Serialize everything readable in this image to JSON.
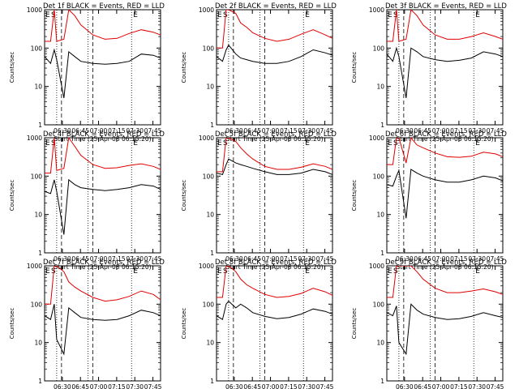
{
  "figure": {
    "background": "#ffffff",
    "axis_color": "#000000",
    "events_color": "#000000",
    "lld_color": "#e00000"
  },
  "chart_data": [
    {
      "type": "line",
      "title": "Det 1f BLACK = Events, RED = LLD",
      "xlabel": "Start Time (25-Apr-08 06:15:20)",
      "ylabel": "Counts/sec",
      "yscale": "log",
      "ylim": [
        1,
        1000
      ],
      "xlim_minutes_after_start": [
        0,
        96
      ],
      "x_tick_labels": [
        "06:30",
        "06:45",
        "07:00",
        "07:15",
        "07:30",
        "07:45"
      ],
      "y_tick_labels": [
        "1",
        "10",
        "100",
        "1000"
      ],
      "annotations": [
        "E",
        "S",
        "E"
      ],
      "series": [
        {
          "name": "LLD",
          "color": "#e00000",
          "x": [
            0,
            5,
            8,
            10,
            16,
            20,
            25,
            30,
            40,
            50,
            60,
            70,
            80,
            90,
            96
          ],
          "y": [
            150,
            150,
            1000,
            150,
            170,
            1000,
            700,
            400,
            220,
            170,
            180,
            240,
            300,
            260,
            220
          ]
        },
        {
          "name": "Events",
          "color": "#000000",
          "x": [
            0,
            5,
            8,
            10,
            16,
            20,
            25,
            30,
            40,
            50,
            60,
            70,
            80,
            90,
            96
          ],
          "y": [
            60,
            40,
            90,
            50,
            5,
            80,
            60,
            45,
            40,
            38,
            40,
            45,
            70,
            65,
            55
          ]
        }
      ]
    },
    {
      "type": "line",
      "title": "Det 2f BLACK = Events, RED = LLD",
      "xlabel": "Start Time (25-Apr-08 06:15:20)",
      "ylabel": "Counts/sec",
      "yscale": "log",
      "ylim": [
        1,
        1000
      ],
      "xlim_minutes_after_start": [
        0,
        96
      ],
      "x_tick_labels": [
        "06:30",
        "06:45",
        "07:00",
        "07:15",
        "07:30",
        "07:45"
      ],
      "y_tick_labels": [
        "1",
        "10",
        "100",
        "1000"
      ],
      "annotations": [
        "E",
        "S",
        "E"
      ],
      "series": [
        {
          "name": "LLD",
          "color": "#e00000",
          "x": [
            0,
            5,
            8,
            10,
            16,
            20,
            25,
            30,
            40,
            50,
            60,
            70,
            80,
            90,
            96
          ],
          "y": [
            100,
            100,
            1000,
            1000,
            800,
            450,
            350,
            250,
            180,
            150,
            170,
            230,
            300,
            220,
            180
          ]
        },
        {
          "name": "Events",
          "color": "#000000",
          "x": [
            0,
            5,
            8,
            10,
            16,
            20,
            25,
            30,
            40,
            50,
            60,
            70,
            80,
            90,
            96
          ],
          "y": [
            60,
            45,
            90,
            120,
            70,
            55,
            50,
            45,
            40,
            40,
            45,
            60,
            90,
            75,
            65
          ]
        }
      ]
    },
    {
      "type": "line",
      "title": "Det 3f BLACK = Events, RED = LLD",
      "xlabel": "Start Time (25-Apr-08 06:15:20)",
      "ylabel": "Counts/sec",
      "yscale": "log",
      "ylim": [
        1,
        1000
      ],
      "xlim_minutes_after_start": [
        0,
        96
      ],
      "x_tick_labels": [
        "06:30",
        "06:45",
        "07:00",
        "07:15",
        "07:30",
        "07:45"
      ],
      "y_tick_labels": [
        "1",
        "10",
        "100",
        "1000"
      ],
      "annotations": [
        "E",
        "S",
        "E"
      ],
      "series": [
        {
          "name": "LLD",
          "color": "#e00000",
          "x": [
            0,
            5,
            8,
            10,
            16,
            20,
            25,
            30,
            40,
            50,
            60,
            70,
            80,
            90,
            96
          ],
          "y": [
            150,
            150,
            1000,
            150,
            170,
            1000,
            700,
            400,
            220,
            170,
            170,
            200,
            250,
            200,
            170
          ]
        },
        {
          "name": "Events",
          "color": "#000000",
          "x": [
            0,
            5,
            8,
            10,
            16,
            20,
            25,
            30,
            40,
            50,
            60,
            70,
            80,
            90,
            96
          ],
          "y": [
            70,
            45,
            100,
            60,
            5,
            100,
            80,
            60,
            50,
            45,
            48,
            55,
            80,
            70,
            60
          ]
        }
      ]
    },
    {
      "type": "line",
      "title": "Det 4f BLACK = Events, RED = LLD",
      "xlabel": "Start Time (25-Apr-08 06:15:20)",
      "ylabel": "Counts/sec",
      "yscale": "log",
      "ylim": [
        1,
        1000
      ],
      "xlim_minutes_after_start": [
        0,
        96
      ],
      "x_tick_labels": [
        "06:30",
        "06:45",
        "07:00",
        "07:15",
        "07:30",
        "07:45"
      ],
      "y_tick_labels": [
        "1",
        "10",
        "100",
        "1000"
      ],
      "annotations": [
        "E",
        "S",
        "E"
      ],
      "series": [
        {
          "name": "LLD",
          "color": "#e00000",
          "x": [
            0,
            5,
            8,
            10,
            16,
            20,
            25,
            30,
            40,
            50,
            60,
            70,
            80,
            90,
            96
          ],
          "y": [
            120,
            120,
            1000,
            140,
            160,
            1000,
            600,
            350,
            200,
            160,
            165,
            190,
            210,
            180,
            150
          ]
        },
        {
          "name": "Events",
          "color": "#000000",
          "x": [
            0,
            5,
            8,
            10,
            16,
            20,
            25,
            30,
            40,
            50,
            60,
            70,
            80,
            90,
            96
          ],
          "y": [
            40,
            35,
            80,
            40,
            3,
            80,
            60,
            50,
            45,
            42,
            45,
            50,
            60,
            55,
            45
          ]
        }
      ]
    },
    {
      "type": "line",
      "title": "Det 5f BLACK = Events, RED = LLD",
      "xlabel": "Start Time (25-Apr-08 06:15:20)",
      "ylabel": "Counts/sec",
      "yscale": "log",
      "ylim": [
        1,
        1000
      ],
      "xlim_minutes_after_start": [
        0,
        96
      ],
      "x_tick_labels": [
        "06:30",
        "06:45",
        "07:00",
        "07:15",
        "07:30",
        "07:45"
      ],
      "y_tick_labels": [
        "1",
        "10",
        "100",
        "1000"
      ],
      "annotations": [
        "E",
        "S",
        "E"
      ],
      "series": [
        {
          "name": "LLD",
          "color": "#e00000",
          "x": [
            0,
            5,
            8,
            10,
            16,
            20,
            25,
            30,
            40,
            50,
            60,
            70,
            80,
            90,
            96
          ],
          "y": [
            130,
            130,
            1000,
            1000,
            800,
            550,
            380,
            280,
            180,
            150,
            150,
            170,
            210,
            180,
            150
          ]
        },
        {
          "name": "Events",
          "color": "#000000",
          "x": [
            0,
            5,
            8,
            10,
            16,
            20,
            25,
            30,
            40,
            50,
            60,
            70,
            80,
            90,
            96
          ],
          "y": [
            120,
            110,
            200,
            280,
            220,
            200,
            180,
            160,
            130,
            110,
            110,
            120,
            150,
            130,
            110
          ]
        }
      ]
    },
    {
      "type": "line",
      "title": "Det 6f BLACK = Events, RED = LLD",
      "xlabel": "Start Time (25-Apr-08 06:15:20)",
      "ylabel": "Counts/sec",
      "yscale": "log",
      "ylim": [
        1,
        1000
      ],
      "xlim_minutes_after_start": [
        0,
        96
      ],
      "x_tick_labels": [
        "06:30",
        "06:45",
        "07:00",
        "07:15",
        "07:30",
        "07:45"
      ],
      "y_tick_labels": [
        "1",
        "10",
        "100",
        "1000"
      ],
      "annotations": [
        "E",
        "S",
        "E"
      ],
      "series": [
        {
          "name": "LLD",
          "color": "#e00000",
          "x": [
            0,
            5,
            8,
            10,
            16,
            20,
            25,
            30,
            40,
            50,
            60,
            70,
            80,
            90,
            96
          ],
          "y": [
            200,
            200,
            1000,
            1000,
            220,
            1000,
            650,
            550,
            400,
            320,
            310,
            330,
            420,
            380,
            320
          ]
        },
        {
          "name": "Events",
          "color": "#000000",
          "x": [
            0,
            5,
            8,
            10,
            16,
            20,
            25,
            30,
            40,
            50,
            60,
            70,
            80,
            90,
            96
          ],
          "y": [
            60,
            55,
            100,
            140,
            8,
            150,
            120,
            100,
            80,
            70,
            70,
            80,
            100,
            90,
            75
          ]
        }
      ]
    },
    {
      "type": "line",
      "title": "Det 7f BLACK = Events, RED = LLD",
      "xlabel": "Start Time (25-Apr-08 06:15:20)",
      "ylabel": "Counts/sec",
      "yscale": "log",
      "ylim": [
        1,
        1000
      ],
      "xlim_minutes_after_start": [
        0,
        96
      ],
      "x_tick_labels": [
        "06:30",
        "06:45",
        "07:00",
        "07:15",
        "07:30",
        "07:45"
      ],
      "y_tick_labels": [
        "1",
        "10",
        "100",
        "1000"
      ],
      "annotations": [
        "E",
        "S",
        "E"
      ],
      "series": [
        {
          "name": "LLD",
          "color": "#e00000",
          "x": [
            0,
            5,
            8,
            10,
            16,
            20,
            25,
            30,
            40,
            50,
            60,
            70,
            80,
            90,
            96
          ],
          "y": [
            100,
            100,
            1000,
            1000,
            700,
            380,
            280,
            220,
            150,
            120,
            130,
            160,
            220,
            180,
            130
          ]
        },
        {
          "name": "Events",
          "color": "#000000",
          "x": [
            0,
            5,
            8,
            10,
            16,
            20,
            25,
            30,
            40,
            50,
            60,
            70,
            80,
            90,
            96
          ],
          "y": [
            50,
            40,
            100,
            12,
            5,
            80,
            60,
            45,
            40,
            38,
            40,
            50,
            70,
            60,
            50
          ]
        }
      ]
    },
    {
      "type": "line",
      "title": "Det 8f BLACK = Events, RED = LLD",
      "xlabel": "Start Time (25-Apr-08 06:15:20)",
      "ylabel": "Counts/sec",
      "yscale": "log",
      "ylim": [
        1,
        1000
      ],
      "xlim_minutes_after_start": [
        0,
        96
      ],
      "x_tick_labels": [
        "06:30",
        "06:45",
        "07:00",
        "07:15",
        "07:30",
        "07:45"
      ],
      "y_tick_labels": [
        "1",
        "10",
        "100",
        "1000"
      ],
      "annotations": [
        "E",
        "S",
        "E"
      ],
      "series": [
        {
          "name": "LLD",
          "color": "#e00000",
          "x": [
            0,
            5,
            8,
            10,
            16,
            20,
            25,
            30,
            40,
            50,
            60,
            70,
            80,
            90,
            96
          ],
          "y": [
            150,
            150,
            1000,
            1000,
            700,
            450,
            320,
            260,
            180,
            150,
            160,
            190,
            260,
            210,
            170
          ]
        },
        {
          "name": "Events",
          "color": "#000000",
          "x": [
            0,
            5,
            8,
            10,
            16,
            20,
            25,
            30,
            40,
            50,
            60,
            70,
            80,
            90,
            96
          ],
          "y": [
            50,
            40,
            100,
            120,
            80,
            100,
            80,
            60,
            48,
            42,
            45,
            55,
            75,
            65,
            55
          ]
        }
      ]
    },
    {
      "type": "line",
      "title": "Det 9f BLACK = Events, RED = LLD",
      "xlabel": "Start Time (25-Apr-08 06:15:20)",
      "ylabel": "Counts/sec",
      "yscale": "log",
      "ylim": [
        1,
        1000
      ],
      "xlim_minutes_after_start": [
        0,
        96
      ],
      "x_tick_labels": [
        "06:30",
        "06:45",
        "07:00",
        "07:15",
        "07:30",
        "07:45"
      ],
      "y_tick_labels": [
        "1",
        "10",
        "100",
        "1000"
      ],
      "annotations": [
        "E",
        "S",
        "E"
      ],
      "series": [
        {
          "name": "LLD",
          "color": "#e00000",
          "x": [
            0,
            5,
            8,
            10,
            16,
            20,
            25,
            30,
            40,
            50,
            60,
            70,
            80,
            90,
            96
          ],
          "y": [
            150,
            150,
            1000,
            1000,
            1000,
            1000,
            700,
            450,
            260,
            200,
            200,
            220,
            250,
            210,
            180
          ]
        },
        {
          "name": "Events",
          "color": "#000000",
          "x": [
            0,
            5,
            8,
            10,
            16,
            20,
            25,
            30,
            40,
            50,
            60,
            70,
            80,
            90,
            96
          ],
          "y": [
            60,
            50,
            90,
            10,
            5,
            100,
            70,
            55,
            45,
            40,
            42,
            48,
            60,
            50,
            45
          ]
        }
      ]
    }
  ]
}
